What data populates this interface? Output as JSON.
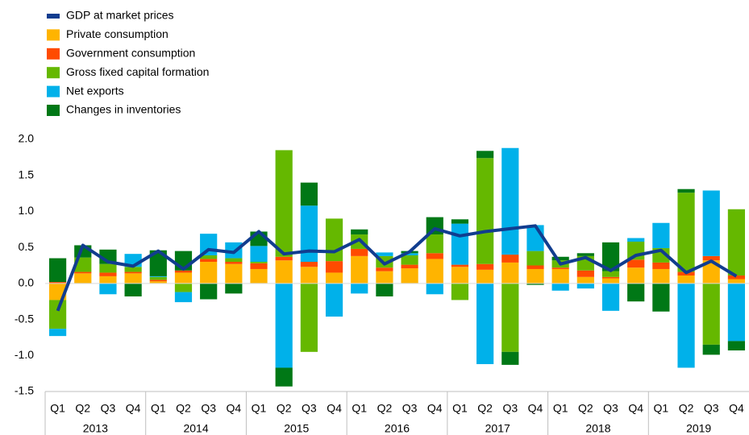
{
  "chart_data": {
    "type": "bar",
    "stacked": true,
    "categories": [
      "Q1",
      "Q2",
      "Q3",
      "Q4",
      "Q1",
      "Q2",
      "Q3",
      "Q4",
      "Q1",
      "Q2",
      "Q3",
      "Q4",
      "Q1",
      "Q2",
      "Q3",
      "Q4",
      "Q1",
      "Q2",
      "Q3",
      "Q4",
      "Q1",
      "Q2",
      "Q3",
      "Q4",
      "Q1",
      "Q2",
      "Q3",
      "Q4"
    ],
    "years": [
      "2013",
      "2014",
      "2015",
      "2016",
      "2017",
      "2018",
      "2019"
    ],
    "ylim": [
      -1.5,
      2.0
    ],
    "yticks": [
      {
        "value": -1.5,
        "label": "-1.5"
      },
      {
        "value": -1.0,
        "label": "-1.0"
      },
      -0.5,
      {
        "value": 0,
        "label": "0.0"
      },
      0.5,
      {
        "value": 1.0,
        "label": "1.0"
      },
      1.5,
      {
        "value": 2.0,
        "label": "2.0"
      }
    ],
    "grid": false,
    "legend": "top-left",
    "series": [
      {
        "name": "GDP at market prices",
        "type": "line",
        "color": "#113d8f",
        "values": [
          -0.38,
          0.53,
          0.3,
          0.24,
          0.45,
          0.2,
          0.47,
          0.43,
          0.72,
          0.41,
          0.45,
          0.44,
          0.61,
          0.27,
          0.44,
          0.76,
          0.66,
          0.72,
          0.76,
          0.8,
          0.27,
          0.36,
          0.18,
          0.39,
          0.46,
          0.15,
          0.31,
          0.1
        ]
      },
      {
        "name": "Private consumption",
        "color": "#ffb400",
        "values": [
          -0.23,
          0.14,
          0.1,
          0.14,
          0.03,
          0.15,
          0.3,
          0.27,
          0.2,
          0.32,
          0.23,
          0.15,
          0.38,
          0.17,
          0.21,
          0.34,
          0.23,
          0.19,
          0.29,
          0.2,
          0.2,
          0.09,
          0.07,
          0.22,
          0.2,
          0.11,
          0.32,
          0.06
        ]
      },
      {
        "name": "Government consumption",
        "color": "#ff4b00",
        "values": [
          0.02,
          0.02,
          0.05,
          0.02,
          0.02,
          0.03,
          0.04,
          0.03,
          0.08,
          0.05,
          0.07,
          0.16,
          0.1,
          0.05,
          0.05,
          0.08,
          0.03,
          0.08,
          0.11,
          0.05,
          0.02,
          0.09,
          0.02,
          0.11,
          0.09,
          0.05,
          0.06,
          0.05
        ]
      },
      {
        "name": "Gross fixed capital formation",
        "color": "#65b800",
        "values": [
          -0.4,
          0.2,
          0.12,
          0.07,
          0.04,
          -0.12,
          0.05,
          0.05,
          0.02,
          1.48,
          -0.95,
          0.59,
          0.2,
          0.16,
          0.13,
          0.26,
          -0.23,
          1.47,
          -0.95,
          0.2,
          0.1,
          0.2,
          0.08,
          0.25,
          0.2,
          1.1,
          -0.85,
          0.92
        ]
      },
      {
        "name": "Net exports",
        "color": "#00b1ea",
        "values": [
          -0.1,
          0,
          -0.15,
          0.18,
          0.01,
          -0.14,
          0.3,
          0.22,
          0.22,
          -1.17,
          0.78,
          -0.46,
          -0.14,
          0.05,
          0.03,
          -0.15,
          0.57,
          -1.12,
          1.48,
          0.36,
          -0.1,
          -0.07,
          -0.38,
          0.05,
          0.35,
          -1.17,
          0.91,
          -0.8
        ]
      },
      {
        "name": "Changes in inventories",
        "color": "#007816",
        "values": [
          0.33,
          0.17,
          0.2,
          -0.18,
          0.36,
          0.27,
          -0.22,
          -0.14,
          0.2,
          -0.26,
          0.32,
          0,
          0.07,
          -0.18,
          0.03,
          0.24,
          0.06,
          0.1,
          -0.18,
          -0.02,
          0.05,
          0.04,
          0.4,
          -0.25,
          -0.39,
          0.05,
          -0.14,
          -0.13
        ]
      }
    ]
  }
}
